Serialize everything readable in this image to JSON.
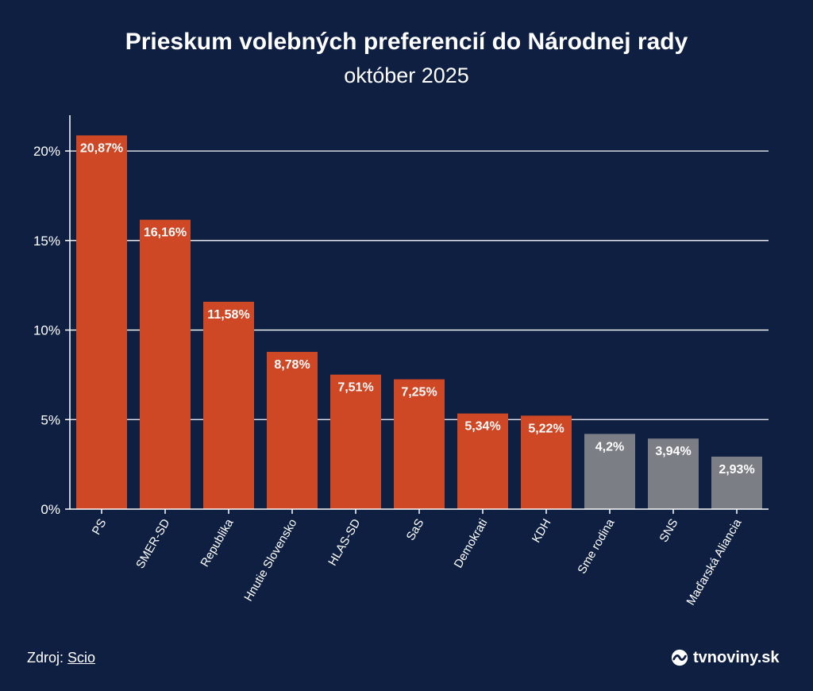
{
  "title": "Prieskum volebných preferencií do Národnej rady",
  "subtitle": "október 2025",
  "chart_data": {
    "type": "bar",
    "title": "Prieskum volebných preferencií do Národnej rady",
    "subtitle": "október 2025",
    "categories": [
      "PS",
      "SMER-SD",
      "Republika",
      "Hnutie Slovensko",
      "HLAS-SD",
      "SaS",
      "Demokrati",
      "KDH",
      "Sme rodina",
      "SNS",
      "Maďarská Aliancia"
    ],
    "values": [
      20.87,
      16.16,
      11.58,
      8.78,
      7.51,
      7.25,
      5.34,
      5.22,
      4.2,
      3.94,
      2.93
    ],
    "value_labels": [
      "20,87%",
      "16,16%",
      "11,58%",
      "8,78%",
      "7,51%",
      "7,25%",
      "5,34%",
      "5,22%",
      "4,2%",
      "3,94%",
      "2,93%"
    ],
    "yticks": [
      0,
      5,
      10,
      15,
      20
    ],
    "ytick_labels": [
      "0%",
      "5%",
      "10%",
      "15%",
      "20%"
    ],
    "ylim": [
      0,
      22
    ],
    "xlabel": "",
    "ylabel": "",
    "grid": true,
    "threshold": 5,
    "colors": {
      "above": "#cf4826",
      "below": "#7b7e85",
      "grid": "#ffffff",
      "background": "#0e1f42"
    }
  },
  "footer": {
    "source_label": "Zdroj:",
    "source_name": "Scio",
    "brand": "tvnoviny.sk",
    "brand_icon": "tvnoviny-logo-icon"
  }
}
